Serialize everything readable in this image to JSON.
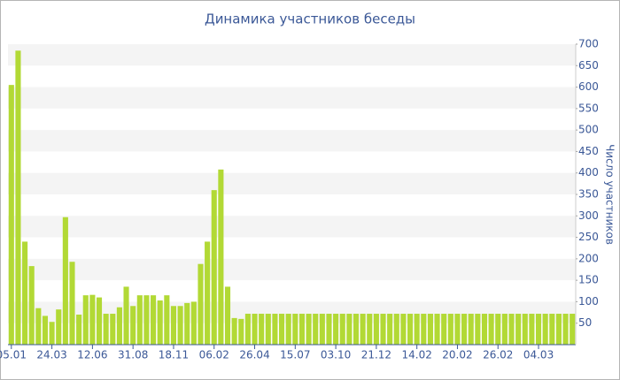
{
  "chart_data": {
    "type": "bar",
    "title": "Динамика участников беседы",
    "y_label": "Число участников",
    "categories": [
      "05.01",
      null,
      null,
      null,
      null,
      null,
      "24.03",
      null,
      null,
      null,
      null,
      null,
      "12.06",
      null,
      null,
      null,
      null,
      null,
      "31.08",
      null,
      null,
      null,
      null,
      null,
      "18.11",
      null,
      null,
      null,
      null,
      null,
      "06.02",
      null,
      null,
      null,
      null,
      null,
      "26.04",
      null,
      null,
      null,
      null,
      null,
      "15.07",
      null,
      null,
      null,
      null,
      null,
      "03.10",
      null,
      null,
      null,
      null,
      null,
      "21.12",
      null,
      null,
      null,
      null,
      null,
      "14.02",
      null,
      null,
      null,
      null,
      null,
      "20.02",
      null,
      null,
      null,
      null,
      null,
      "26.02",
      null,
      null,
      null,
      null,
      null,
      "04.03",
      null,
      null,
      null,
      null,
      null
    ],
    "values": [
      605,
      685,
      240,
      183,
      85,
      67,
      53,
      82,
      297,
      193,
      70,
      115,
      116,
      110,
      72,
      72,
      87,
      135,
      90,
      115,
      115,
      115,
      103,
      115,
      90,
      90,
      97,
      100,
      188,
      240,
      360,
      408,
      135,
      62,
      60,
      72,
      72,
      72,
      72,
      72,
      72,
      72,
      72,
      72,
      72,
      72,
      72,
      72,
      72,
      72,
      72,
      72,
      72,
      72,
      72,
      72,
      72,
      72,
      72,
      72,
      72,
      72,
      72,
      72,
      72,
      72,
      72,
      72,
      72,
      72,
      72,
      72,
      72,
      72,
      72,
      72,
      72,
      72,
      72,
      72,
      72,
      72,
      72,
      72
    ],
    "color": "#b2d935",
    "ylim": [
      0,
      700
    ],
    "yticks": [
      50,
      100,
      150,
      200,
      250,
      300,
      350,
      400,
      450,
      500,
      550,
      600,
      650,
      700
    ],
    "grid": true
  }
}
